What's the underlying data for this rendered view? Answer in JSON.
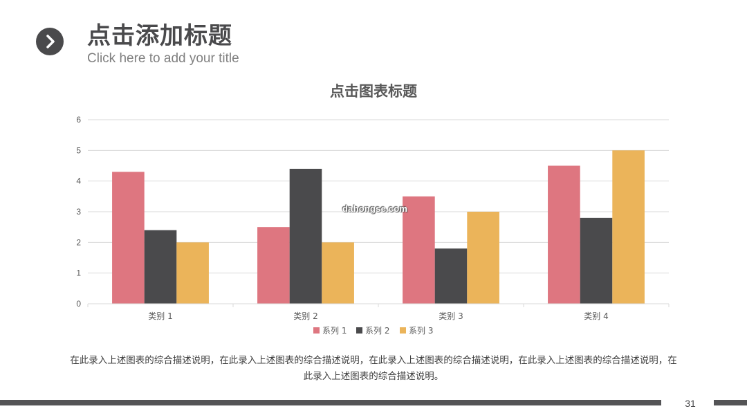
{
  "header": {
    "title": "点击添加标题",
    "subtitle": "Click here to add your title",
    "icon": "chevron-right-icon"
  },
  "colors": {
    "series1": "#DE7680",
    "series2": "#4A4A4C",
    "series3": "#EBB45A",
    "grid": "#D9D9D9",
    "axis_text": "#595959"
  },
  "chart_data": {
    "type": "bar",
    "title": "点击图表标题",
    "categories": [
      "类别 1",
      "类别 2",
      "类别 3",
      "类别 4"
    ],
    "series": [
      {
        "name": "系列 1",
        "values": [
          4.3,
          2.5,
          3.5,
          4.5
        ]
      },
      {
        "name": "系列 2",
        "values": [
          2.4,
          4.4,
          1.8,
          2.8
        ]
      },
      {
        "name": "系列 3",
        "values": [
          2,
          2,
          3,
          5
        ]
      }
    ],
    "ylim": [
      0,
      6
    ],
    "yticks": [
      "0",
      "1",
      "2",
      "3",
      "4",
      "5",
      "6"
    ],
    "grid": true,
    "legend": "bottom"
  },
  "watermark": "dahongse.com",
  "description": "在此录入上述图表的综合描述说明，在此录入上述图表的综合描述说明，在此录入上述图表的综合描述说明，在此录入上述图表的综合描述说明，在此录入上述图表的综合描述说明。",
  "page_number": "31"
}
